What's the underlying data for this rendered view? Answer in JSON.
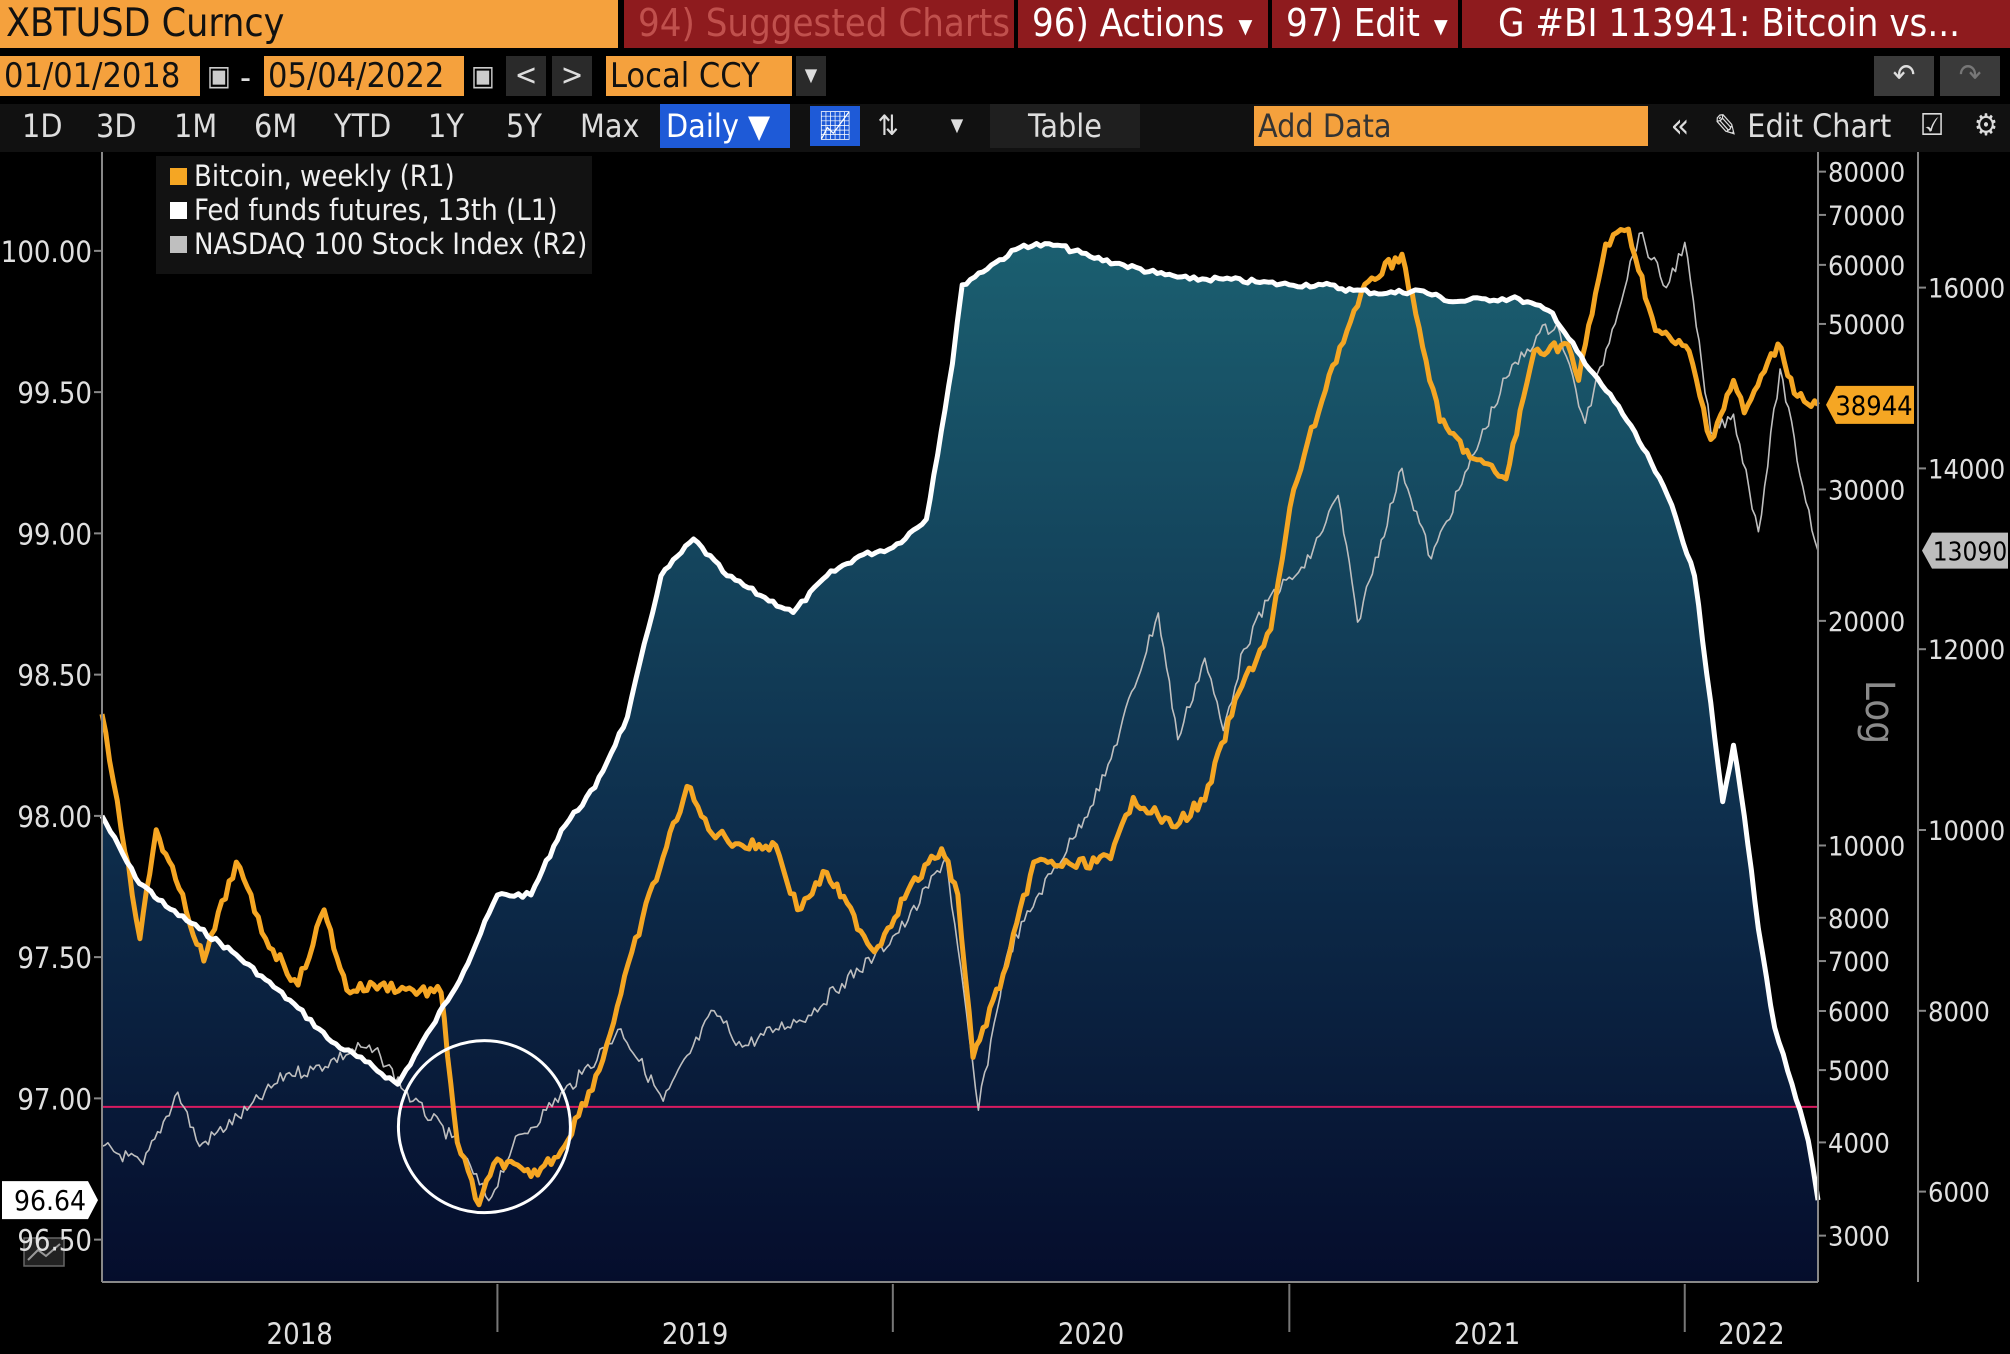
{
  "header": {
    "ticker": "XBTUSD Curncy",
    "suggested": "94) Suggested Charts",
    "actions": "96) Actions",
    "edit": "97) Edit",
    "chart_id": "G #BI 113941: Bitcoin vs..."
  },
  "toolbar": {
    "start_date": "01/01/2018",
    "dash": "-",
    "end_date": "05/04/2022",
    "prev": "<",
    "next": ">",
    "currency": "Local CCY",
    "periods": [
      "1D",
      "3D",
      "1M",
      "6M",
      "YTD",
      "1Y",
      "5Y",
      "Max"
    ],
    "frequency": "Daily ▼",
    "table": "Table",
    "add_data_placeholder": "Add Data",
    "edit_chart": "Edit Chart"
  },
  "icons": {
    "calendar": "calendar-icon",
    "dropdown": "chevron-down-icon",
    "undo": "undo-icon",
    "redo": "redo-icon",
    "line_chart": "line-chart-icon",
    "candlestick": "candlestick-icon",
    "collapse": "double-chevron-left-icon",
    "pencil": "pencil-icon",
    "annotate": "annotate-icon",
    "gear": "gear-icon"
  },
  "colors": {
    "accent_orange": "#f5a13d",
    "menu_red": "#8e1b1e",
    "active_blue": "#1e5ad7",
    "bitcoin": "#f5a623",
    "fed_funds": "#ffffff",
    "nasdaq": "#bfbfbf",
    "reference_line": "#d81b60"
  },
  "chart_data": {
    "type": "line",
    "legend_position": "top-left",
    "legend": [
      {
        "name": "Bitcoin, weekly (R1)",
        "color": "#f5a623"
      },
      {
        "name": "Fed funds futures, 13th (L1)",
        "color": "#ffffff"
      },
      {
        "name": "NASDAQ 100 Stock Index (R2)",
        "color": "#bfbfbf"
      }
    ],
    "x_ticks": [
      "2018",
      "2019",
      "2020",
      "2021",
      "2022"
    ],
    "x_range": [
      "2018-01-01",
      "2022-05-04"
    ],
    "left_axis": {
      "range": [
        96.35,
        100.35
      ],
      "ticks": [
        "96.50",
        "97.00",
        "97.50",
        "98.00",
        "98.50",
        "99.00",
        "99.50",
        "100.00"
      ],
      "last_value": "96.64"
    },
    "right1_axis": {
      "scale": "log",
      "scale_label": "Log",
      "range": [
        2600,
        85000
      ],
      "ticks": [
        "3000",
        "4000",
        "5000",
        "6000",
        "7000",
        "8000",
        "10000",
        "20000",
        "30000",
        "50000",
        "60000",
        "70000",
        "80000"
      ],
      "last_value": "38944"
    },
    "right2_axis": {
      "range": [
        5000,
        17500
      ],
      "ticks": [
        "6000",
        "8000",
        "10000",
        "12000",
        "14000",
        "16000"
      ],
      "last_value": "13090"
    },
    "reference_line": {
      "axis": "left",
      "value": 96.97
    },
    "highlight_circle": {
      "date": "2018-12-20",
      "left_value": 96.9
    },
    "series": [
      {
        "name": "Fed funds futures, 13th (L1)",
        "axis": "left",
        "filled": true,
        "points": [
          [
            "2018-01-01",
            98.0
          ],
          [
            "2018-02-01",
            97.78
          ],
          [
            "2018-03-01",
            97.68
          ],
          [
            "2018-04-01",
            97.6
          ],
          [
            "2018-05-01",
            97.52
          ],
          [
            "2018-06-01",
            97.42
          ],
          [
            "2018-07-01",
            97.32
          ],
          [
            "2018-08-01",
            97.2
          ],
          [
            "2018-09-01",
            97.13
          ],
          [
            "2018-10-01",
            97.05
          ],
          [
            "2018-11-01",
            97.25
          ],
          [
            "2018-12-01",
            97.45
          ],
          [
            "2019-01-01",
            97.72
          ],
          [
            "2019-02-01",
            97.72
          ],
          [
            "2019-03-01",
            97.95
          ],
          [
            "2019-04-01",
            98.1
          ],
          [
            "2019-05-01",
            98.35
          ],
          [
            "2019-06-01",
            98.85
          ],
          [
            "2019-07-01",
            98.98
          ],
          [
            "2019-08-01",
            98.85
          ],
          [
            "2019-09-01",
            98.78
          ],
          [
            "2019-10-01",
            98.72
          ],
          [
            "2019-11-01",
            98.85
          ],
          [
            "2019-12-01",
            98.92
          ],
          [
            "2020-01-01",
            98.95
          ],
          [
            "2020-02-01",
            99.05
          ],
          [
            "2020-02-25",
            99.6
          ],
          [
            "2020-03-05",
            99.88
          ],
          [
            "2020-04-01",
            99.95
          ],
          [
            "2020-05-01",
            100.02
          ],
          [
            "2020-06-01",
            100.02
          ],
          [
            "2020-07-01",
            99.98
          ],
          [
            "2020-08-01",
            99.95
          ],
          [
            "2020-09-01",
            99.92
          ],
          [
            "2020-10-01",
            99.9
          ],
          [
            "2020-11-01",
            99.9
          ],
          [
            "2020-12-01",
            99.89
          ],
          [
            "2021-01-01",
            99.88
          ],
          [
            "2021-02-01",
            99.88
          ],
          [
            "2021-03-01",
            99.86
          ],
          [
            "2021-04-01",
            99.85
          ],
          [
            "2021-05-01",
            99.86
          ],
          [
            "2021-06-01",
            99.82
          ],
          [
            "2021-07-01",
            99.83
          ],
          [
            "2021-08-01",
            99.83
          ],
          [
            "2021-09-01",
            99.78
          ],
          [
            "2021-10-01",
            99.6
          ],
          [
            "2021-11-01",
            99.45
          ],
          [
            "2021-12-01",
            99.25
          ],
          [
            "2021-12-20",
            99.1
          ],
          [
            "2022-01-10",
            98.85
          ],
          [
            "2022-01-25",
            98.4
          ],
          [
            "2022-02-05",
            98.05
          ],
          [
            "2022-02-15",
            98.25
          ],
          [
            "2022-02-25",
            98.0
          ],
          [
            "2022-03-10",
            97.6
          ],
          [
            "2022-03-25",
            97.25
          ],
          [
            "2022-04-10",
            97.05
          ],
          [
            "2022-04-25",
            96.85
          ],
          [
            "2022-05-04",
            96.64
          ]
        ]
      },
      {
        "name": "Bitcoin, weekly (R1)",
        "axis": "right1",
        "points": [
          [
            "2018-01-01",
            15000
          ],
          [
            "2018-01-15",
            11500
          ],
          [
            "2018-02-05",
            7500
          ],
          [
            "2018-02-20",
            10500
          ],
          [
            "2018-03-10",
            9000
          ],
          [
            "2018-04-05",
            7000
          ],
          [
            "2018-05-05",
            9500
          ],
          [
            "2018-06-01",
            7500
          ],
          [
            "2018-07-01",
            6500
          ],
          [
            "2018-07-25",
            8200
          ],
          [
            "2018-08-15",
            6400
          ],
          [
            "2018-09-15",
            6500
          ],
          [
            "2018-10-15",
            6400
          ],
          [
            "2018-11-10",
            6350
          ],
          [
            "2018-11-25",
            4000
          ],
          [
            "2018-12-15",
            3300
          ],
          [
            "2019-01-01",
            3800
          ],
          [
            "2019-02-01",
            3600
          ],
          [
            "2019-03-01",
            3900
          ],
          [
            "2019-04-05",
            5000
          ],
          [
            "2019-05-15",
            8000
          ],
          [
            "2019-06-25",
            12000
          ],
          [
            "2019-07-15",
            10500
          ],
          [
            "2019-08-15",
            10000
          ],
          [
            "2019-09-15",
            10000
          ],
          [
            "2019-10-05",
            8200
          ],
          [
            "2019-11-01",
            9200
          ],
          [
            "2019-12-15",
            7200
          ],
          [
            "2020-01-15",
            8700
          ],
          [
            "2020-02-15",
            9900
          ],
          [
            "2020-03-01",
            8600
          ],
          [
            "2020-03-15",
            5200
          ],
          [
            "2020-04-15",
            6900
          ],
          [
            "2020-05-10",
            9500
          ],
          [
            "2020-06-15",
            9400
          ],
          [
            "2020-07-20",
            9600
          ],
          [
            "2020-08-10",
            11600
          ],
          [
            "2020-09-15",
            10600
          ],
          [
            "2020-10-15",
            11500
          ],
          [
            "2020-11-15",
            16000
          ],
          [
            "2020-12-15",
            19500
          ],
          [
            "2021-01-05",
            30000
          ],
          [
            "2021-02-10",
            44000
          ],
          [
            "2021-03-15",
            57000
          ],
          [
            "2021-04-15",
            62000
          ],
          [
            "2021-05-20",
            37000
          ],
          [
            "2021-06-20",
            33000
          ],
          [
            "2021-07-20",
            31000
          ],
          [
            "2021-08-15",
            46000
          ],
          [
            "2021-09-15",
            47000
          ],
          [
            "2021-09-25",
            42000
          ],
          [
            "2021-10-20",
            64000
          ],
          [
            "2021-11-10",
            67000
          ],
          [
            "2021-12-05",
            49000
          ],
          [
            "2022-01-05",
            46000
          ],
          [
            "2022-01-25",
            35000
          ],
          [
            "2022-02-15",
            42000
          ],
          [
            "2022-02-25",
            38000
          ],
          [
            "2022-03-28",
            47000
          ],
          [
            "2022-04-15",
            40000
          ],
          [
            "2022-05-04",
            38944
          ]
        ]
      },
      {
        "name": "NASDAQ 100 Stock Index (R2)",
        "axis": "right2",
        "points": [
          [
            "2018-01-01",
            6500
          ],
          [
            "2018-02-08",
            6300
          ],
          [
            "2018-03-12",
            7100
          ],
          [
            "2018-04-01",
            6500
          ],
          [
            "2018-05-15",
            6900
          ],
          [
            "2018-06-20",
            7300
          ],
          [
            "2018-07-15",
            7350
          ],
          [
            "2018-08-28",
            7600
          ],
          [
            "2018-09-15",
            7500
          ],
          [
            "2018-10-15",
            7000
          ],
          [
            "2018-11-20",
            6600
          ],
          [
            "2018-12-24",
            5900
          ],
          [
            "2019-01-15",
            6500
          ],
          [
            "2019-02-15",
            6900
          ],
          [
            "2019-03-20",
            7300
          ],
          [
            "2019-04-25",
            7800
          ],
          [
            "2019-06-03",
            7000
          ],
          [
            "2019-07-20",
            8000
          ],
          [
            "2019-08-15",
            7600
          ],
          [
            "2019-09-15",
            7800
          ],
          [
            "2019-10-15",
            7950
          ],
          [
            "2019-11-15",
            8300
          ],
          [
            "2019-12-15",
            8600
          ],
          [
            "2020-01-15",
            9000
          ],
          [
            "2020-02-19",
            9700
          ],
          [
            "2020-03-20",
            6900
          ],
          [
            "2020-04-15",
            8600
          ],
          [
            "2020-05-15",
            9300
          ],
          [
            "2020-06-15",
            9900
          ],
          [
            "2020-07-15",
            10600
          ],
          [
            "2020-09-02",
            12400
          ],
          [
            "2020-09-20",
            11000
          ],
          [
            "2020-10-15",
            11900
          ],
          [
            "2020-11-01",
            11100
          ],
          [
            "2020-11-20",
            12000
          ],
          [
            "2020-12-15",
            12600
          ],
          [
            "2021-01-15",
            12900
          ],
          [
            "2021-02-15",
            13700
          ],
          [
            "2021-03-05",
            12300
          ],
          [
            "2021-04-15",
            14000
          ],
          [
            "2021-05-12",
            13000
          ],
          [
            "2021-06-15",
            14000
          ],
          [
            "2021-07-20",
            15000
          ],
          [
            "2021-08-20",
            15500
          ],
          [
            "2021-09-05",
            15600
          ],
          [
            "2021-10-01",
            14500
          ],
          [
            "2021-11-20",
            16600
          ],
          [
            "2021-12-15",
            16000
          ],
          [
            "2022-01-01",
            16500
          ],
          [
            "2022-01-25",
            14400
          ],
          [
            "2022-02-15",
            14600
          ],
          [
            "2022-03-10",
            13300
          ],
          [
            "2022-03-30",
            15100
          ],
          [
            "2022-04-20",
            13800
          ],
          [
            "2022-05-04",
            13090
          ]
        ]
      }
    ]
  }
}
